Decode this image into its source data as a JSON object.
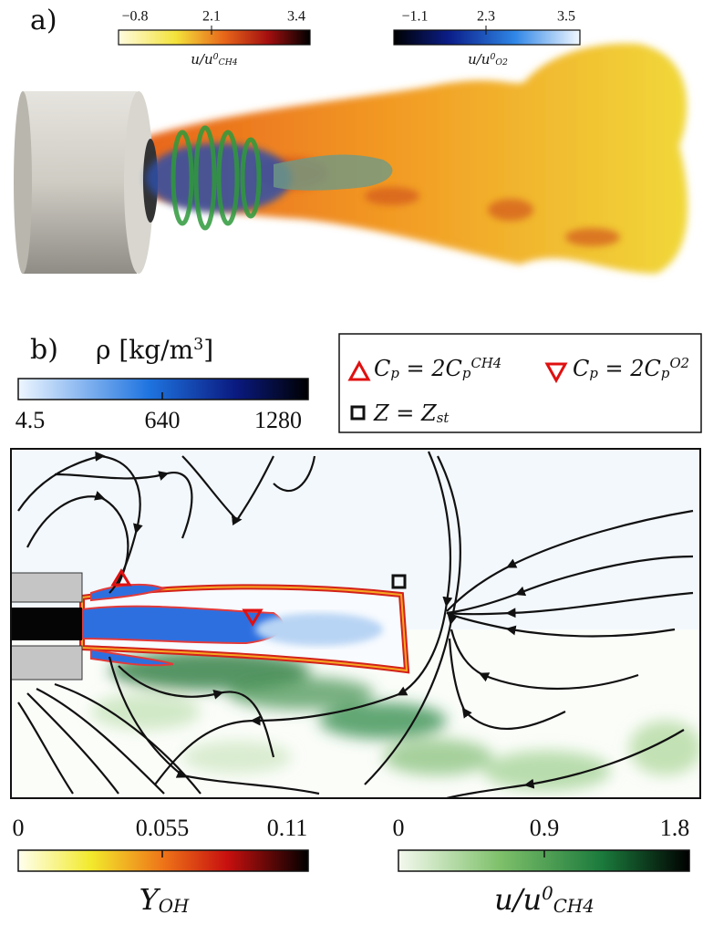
{
  "panel_a": {
    "label": "a)",
    "colorbars": [
      {
        "ticks": [
          "−0.8",
          "2.1",
          "3.4"
        ],
        "label": [
          {
            "text": "u/u"
          },
          {
            "text": "0",
            "pos": "sup"
          },
          {
            "text": "CH4",
            "pos": "sub"
          }
        ]
      },
      {
        "ticks": [
          "−1.1",
          "2.3",
          "3.5"
        ],
        "label": [
          {
            "text": "u/u"
          },
          {
            "text": "0",
            "pos": "sup"
          },
          {
            "text": "O2",
            "pos": "sub"
          }
        ]
      }
    ]
  },
  "panel_b": {
    "label": "b)",
    "density_colorbar": {
      "title": [
        {
          "text": "ρ [kg/m"
        },
        {
          "text": "3",
          "pos": "sup"
        },
        {
          "text": "]"
        }
      ],
      "ticks": [
        "4.5",
        "640",
        "1280"
      ]
    },
    "legend": [
      [
        {
          "text": "C"
        },
        {
          "text": "p",
          "pos": "sub"
        },
        {
          "text": " = 2C"
        },
        {
          "text": "p",
          "pos": "sub"
        },
        {
          "text": "CH4",
          "pos": "sup"
        }
      ],
      [
        {
          "text": "C"
        },
        {
          "text": "p",
          "pos": "sub"
        },
        {
          "text": " = 2C"
        },
        {
          "text": "p",
          "pos": "sub"
        },
        {
          "text": "O2",
          "pos": "sup"
        }
      ],
      [
        {
          "text": "Z = Z"
        },
        {
          "text": "st",
          "pos": "sub"
        }
      ]
    ],
    "bottom_colorbars": [
      {
        "ticks": [
          "0",
          "0.055",
          "0.11"
        ],
        "label": [
          {
            "text": "Y"
          },
          {
            "text": "OH",
            "pos": "sub"
          }
        ]
      },
      {
        "ticks": [
          "0",
          "0.9",
          "1.8"
        ],
        "label": [
          {
            "text": "u/u"
          },
          {
            "text": "0",
            "pos": "sup"
          },
          {
            "text": "CH4",
            "pos": "sub"
          }
        ]
      }
    ]
  }
}
